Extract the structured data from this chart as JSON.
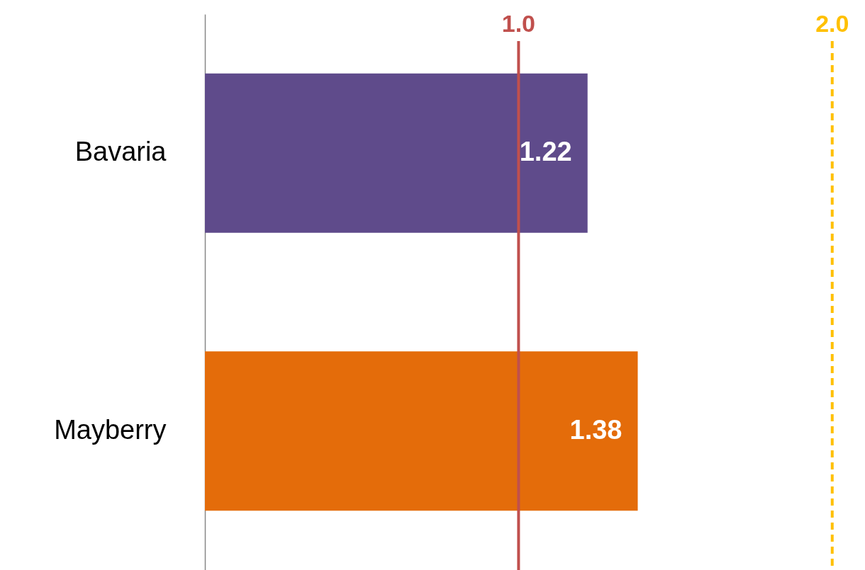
{
  "chart_data": {
    "type": "bar",
    "orientation": "horizontal",
    "categories": [
      "Bavaria",
      "Mayberry"
    ],
    "values": [
      1.22,
      1.38
    ],
    "colors": [
      "#5f4b8b",
      "#e46c0a"
    ],
    "xlim": [
      0,
      2.1
    ],
    "data_labels": true,
    "tick_labels": "y",
    "ref_lines": [
      {
        "axis": "x",
        "value": 1.0,
        "label": "1.0",
        "color": "#c0504d",
        "line_style": "solid"
      },
      {
        "axis": "x",
        "value": 2.0,
        "label": "2.0",
        "color": "#ffc000",
        "line_style": "dashed"
      }
    ]
  }
}
